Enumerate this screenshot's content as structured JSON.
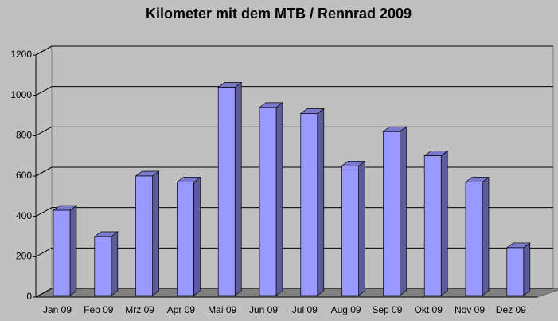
{
  "chart_data": {
    "type": "bar3d",
    "title": "Kilometer mit dem MTB / Rennrad 2009",
    "categories": [
      "Jan 09",
      "Feb 09",
      "Mrz 09",
      "Apr 09",
      "Mai 09",
      "Jun 09",
      "Jul 09",
      "Aug 09",
      "Sep 09",
      "Okt 09",
      "Nov 09",
      "Dez 09"
    ],
    "values": [
      430,
      300,
      600,
      570,
      1040,
      940,
      910,
      650,
      820,
      700,
      570,
      245
    ],
    "color": "#9999ff",
    "ylim": [
      0,
      1200
    ],
    "yticks": [
      0,
      200,
      400,
      600,
      800,
      1000,
      1200
    ],
    "grid": true
  }
}
